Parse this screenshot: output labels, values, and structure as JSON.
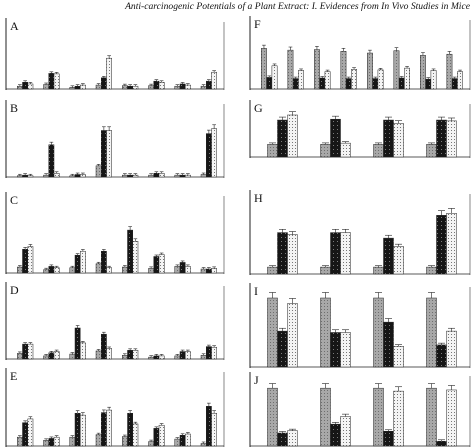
{
  "header": {
    "running_title": "Anti-carcinogenic Potentials of a Plant Extract: I. Evidences from In Vivo Studies in Mice"
  },
  "colors": {
    "bar_light_gray": "#a8a8a8",
    "bar_black": "#1a1a1a",
    "bar_dotted_white": "#f4f4f4",
    "axis": "#222222"
  },
  "chart_data": [
    {
      "panel": "A",
      "type": "bar",
      "ylim": [
        0,
        100
      ],
      "series": [
        {
          "values": [
            5,
            8,
            3,
            7,
            6,
            6,
            5,
            5
          ]
        },
        {
          "values": [
            12,
            28,
            5,
            20,
            5,
            14,
            9,
            14
          ]
        },
        {
          "values": [
            9,
            27,
            7,
            55,
            5,
            12,
            7,
            30
          ]
        }
      ]
    },
    {
      "panel": "B",
      "type": "bar",
      "ylim": [
        0,
        100
      ],
      "series": [
        {
          "values": [
            2,
            3,
            2,
            18,
            3,
            3,
            3,
            4
          ]
        },
        {
          "values": [
            3,
            52,
            4,
            75,
            3,
            6,
            3,
            70
          ]
        },
        {
          "values": [
            2,
            6,
            4,
            75,
            3,
            6,
            3,
            78
          ]
        }
      ]
    },
    {
      "panel": "C",
      "type": "bar",
      "ylim": [
        0,
        100
      ],
      "series": [
        {
          "values": [
            9,
            5,
            8,
            14,
            9,
            7,
            10,
            6
          ]
        },
        {
          "values": [
            36,
            10,
            27,
            33,
            65,
            25,
            16,
            6
          ]
        },
        {
          "values": [
            40,
            8,
            33,
            8,
            48,
            28,
            10,
            7
          ]
        }
      ]
    },
    {
      "panel": "D",
      "type": "bar",
      "ylim": [
        0,
        100
      ],
      "series": [
        {
          "values": [
            9,
            5,
            8,
            13,
            6,
            3,
            5,
            6
          ]
        },
        {
          "values": [
            24,
            10,
            50,
            40,
            14,
            5,
            12,
            20
          ]
        },
        {
          "values": [
            24,
            12,
            26,
            17,
            14,
            5,
            12,
            19
          ]
        }
      ]
    },
    {
      "panel": "E",
      "type": "bar",
      "ylim": [
        0,
        100
      ],
      "series": [
        {
          "values": [
            14,
            9,
            14,
            18,
            15,
            7,
            11,
            4
          ]
        },
        {
          "values": [
            37,
            12,
            52,
            53,
            52,
            28,
            17,
            63
          ]
        },
        {
          "values": [
            43,
            14,
            49,
            57,
            35,
            33,
            19,
            52
          ]
        }
      ]
    },
    {
      "panel": "F",
      "type": "bar",
      "ylim": [
        0,
        100
      ],
      "series": [
        {
          "values": [
            70,
            67,
            68,
            65,
            62,
            66,
            58,
            60
          ]
        },
        {
          "values": [
            20,
            18,
            19,
            18,
            18,
            19,
            17,
            18
          ]
        },
        {
          "values": [
            40,
            32,
            30,
            34,
            33,
            36,
            32,
            30
          ]
        }
      ]
    },
    {
      "panel": "G",
      "type": "bar",
      "ylim": [
        0,
        100
      ],
      "series": [
        {
          "values": [
            30,
            30,
            30,
            30
          ]
        },
        {
          "values": [
            88,
            90,
            88,
            88
          ]
        },
        {
          "values": [
            100,
            33,
            80,
            86
          ]
        }
      ]
    },
    {
      "panel": "H",
      "type": "bar",
      "ylim": [
        0,
        100
      ],
      "series": [
        {
          "values": [
            10,
            10,
            10,
            10
          ]
        },
        {
          "values": [
            60,
            60,
            52,
            85
          ]
        },
        {
          "values": [
            57,
            60,
            40,
            88
          ]
        }
      ]
    },
    {
      "panel": "I",
      "type": "bar",
      "ylim": [
        0,
        100
      ],
      "series": [
        {
          "values": [
            100,
            100,
            100,
            100
          ]
        },
        {
          "values": [
            52,
            50,
            65,
            32
          ]
        },
        {
          "values": [
            92,
            50,
            30,
            52
          ]
        }
      ]
    },
    {
      "panel": "J",
      "type": "bar",
      "ylim": [
        0,
        100
      ],
      "series": [
        {
          "values": [
            98,
            98,
            98,
            98
          ]
        },
        {
          "values": [
            22,
            37,
            25,
            8
          ]
        },
        {
          "values": [
            26,
            50,
            93,
            95
          ]
        }
      ]
    }
  ]
}
